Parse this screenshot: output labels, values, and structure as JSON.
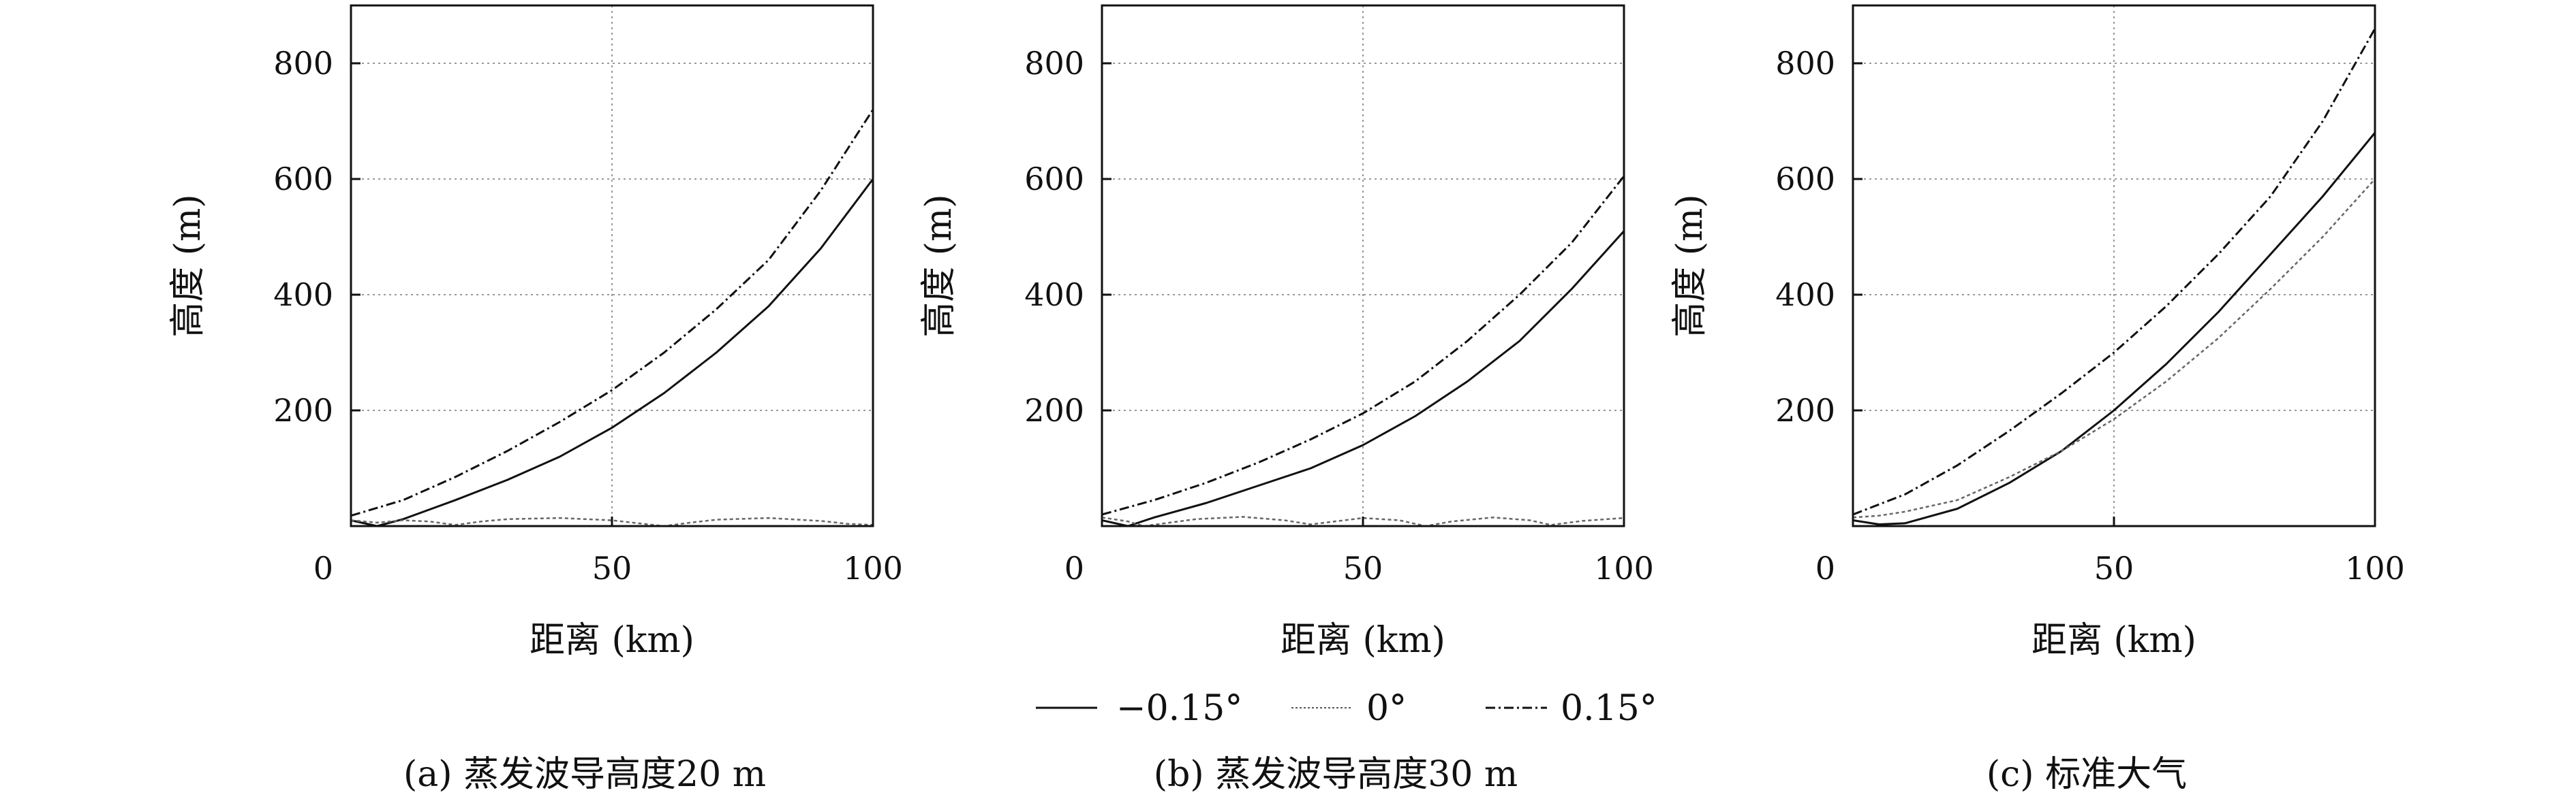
{
  "chart_data": [
    {
      "type": "line",
      "caption": "(a) 蒸发波导高度20 m",
      "xlabel": "距离 (km)",
      "ylabel": "高度 (m)",
      "xlim": [
        0,
        100
      ],
      "ylim": [
        0,
        900
      ],
      "xticks": [
        "0",
        "50",
        "100"
      ],
      "yticks": [
        "200",
        "400",
        "600",
        "800"
      ],
      "grid": true,
      "series": [
        {
          "name": "−0.15°",
          "x": [
            0,
            5,
            10,
            20,
            30,
            40,
            50,
            60,
            70,
            80,
            90,
            100
          ],
          "y": [
            10,
            0,
            12,
            45,
            80,
            120,
            170,
            230,
            300,
            380,
            480,
            600
          ]
        },
        {
          "name": "0°",
          "x": [
            0,
            5,
            10,
            15,
            20,
            25,
            30,
            40,
            50,
            55,
            60,
            65,
            70,
            80,
            90,
            95,
            100
          ],
          "y": [
            10,
            6,
            10,
            8,
            2,
            8,
            12,
            14,
            10,
            5,
            0,
            6,
            11,
            14,
            9,
            4,
            2
          ]
        },
        {
          "name": "0.15°",
          "x": [
            0,
            10,
            20,
            30,
            40,
            50,
            60,
            70,
            80,
            90,
            100
          ],
          "y": [
            18,
            45,
            85,
            130,
            180,
            235,
            300,
            375,
            460,
            580,
            720
          ]
        }
      ]
    },
    {
      "type": "line",
      "caption": "(b) 蒸发波导高度30 m",
      "xlabel": "距离 (km)",
      "ylabel": "高度 (m)",
      "xlim": [
        0,
        100
      ],
      "ylim": [
        0,
        900
      ],
      "xticks": [
        "0",
        "50",
        "100"
      ],
      "yticks": [
        "200",
        "400",
        "600",
        "800"
      ],
      "grid": true,
      "series": [
        {
          "name": "−0.15°",
          "x": [
            0,
            5,
            10,
            20,
            30,
            40,
            50,
            60,
            70,
            80,
            90,
            100
          ],
          "y": [
            10,
            0,
            15,
            40,
            70,
            100,
            140,
            190,
            250,
            320,
            410,
            510
          ]
        },
        {
          "name": "0°",
          "x": [
            0,
            5,
            8,
            13,
            18,
            27,
            35,
            40,
            50,
            57,
            62,
            67,
            75,
            82,
            86,
            92,
            100
          ],
          "y": [
            15,
            8,
            0,
            6,
            12,
            16,
            10,
            3,
            14,
            10,
            0,
            8,
            15,
            10,
            2,
            9,
            14
          ]
        },
        {
          "name": "0.15°",
          "x": [
            0,
            10,
            20,
            30,
            40,
            50,
            60,
            70,
            80,
            90,
            100
          ],
          "y": [
            20,
            45,
            75,
            110,
            150,
            195,
            250,
            320,
            400,
            490,
            605
          ]
        }
      ]
    },
    {
      "type": "line",
      "caption": "(c) 标准大气",
      "xlabel": "距离 (km)",
      "ylabel": "高度 (m)",
      "xlim": [
        0,
        100
      ],
      "ylim": [
        0,
        900
      ],
      "xticks": [
        "0",
        "50",
        "100"
      ],
      "yticks": [
        "200",
        "400",
        "600",
        "800"
      ],
      "grid": true,
      "series": [
        {
          "name": "−0.15°",
          "x": [
            0,
            5,
            10,
            20,
            30,
            40,
            50,
            60,
            70,
            80,
            90,
            100
          ],
          "y": [
            10,
            3,
            5,
            30,
            75,
            130,
            200,
            280,
            370,
            470,
            570,
            680
          ]
        },
        {
          "name": "0°",
          "x": [
            0,
            5,
            10,
            20,
            30,
            40,
            50,
            60,
            70,
            80,
            90,
            100
          ],
          "y": [
            15,
            18,
            25,
            45,
            85,
            130,
            185,
            250,
            325,
            410,
            500,
            600
          ]
        },
        {
          "name": "0.15°",
          "x": [
            0,
            10,
            20,
            30,
            40,
            50,
            60,
            70,
            80,
            90,
            100
          ],
          "y": [
            20,
            55,
            105,
            165,
            230,
            300,
            380,
            470,
            570,
            700,
            860
          ]
        }
      ]
    }
  ],
  "legend": {
    "items": [
      {
        "label": "−0.15°",
        "style": "solid"
      },
      {
        "label": "0°",
        "style": "dotted-thin"
      },
      {
        "label": "0.15°",
        "style": "dashdot"
      }
    ]
  }
}
